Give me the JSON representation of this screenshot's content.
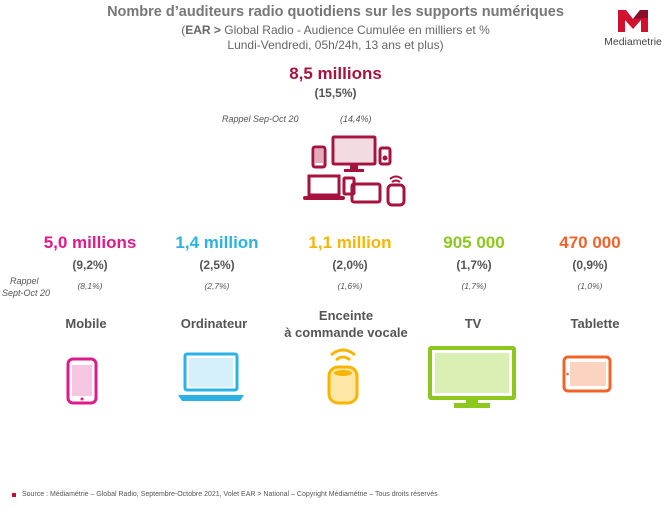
{
  "header": {
    "title": "Nombre d’auditeurs radio quotidiens sur les supports numériques",
    "subtitle_bold": "EAR >",
    "subtitle_rest": " Global Radio - Audience Cumulée en milliers et %",
    "subtitle_line2": "Lundi-Vendredi, 05h/24h, 13 ans et plus)",
    "subtitle_open": "("
  },
  "logo": {
    "letter": "M",
    "brand": "Mediametrie",
    "color": "#d5102f"
  },
  "total": {
    "value": "8,5 millions",
    "pct": "(15,5%)",
    "rappel_label": "Rappel Sep-Oct 20",
    "rappel_pct": "(14,4%)",
    "color": "#a8123e"
  },
  "rappel_left": {
    "line1": "Rappel",
    "line2": "Sept-Oct 20"
  },
  "supports": [
    {
      "value": "5,0 millions",
      "pct": "(9,2%)",
      "rappel": "(8,1%)",
      "label": "Mobile",
      "color": "#e01a8a",
      "icon": "mobile-icon"
    },
    {
      "value": "1,4 million",
      "pct": "(2,5%)",
      "rappel": "(2,7%)",
      "label": "Ordinateur",
      "color": "#2ab2e4",
      "icon": "laptop-icon"
    },
    {
      "value": "1,1 million",
      "pct": "(2,0%)",
      "rappel": "(1,6%)",
      "label_line1": "Enceinte",
      "label_line2": "à commande vocale",
      "color": "#f7b500",
      "icon": "smart-speaker-icon"
    },
    {
      "value": "905 000",
      "pct": "(1,7%)",
      "rappel": "(1,7%)",
      "label": "TV",
      "color": "#8cc81e",
      "icon": "tv-icon"
    },
    {
      "value": "470 000",
      "pct": "(0,9%)",
      "rappel": "(1,0%)",
      "label": "Tablette",
      "color": "#f0642a",
      "icon": "tablet-icon"
    }
  ],
  "footer": {
    "source": "Source : Médiamétrie –  Global Radio, Septembre-Octobre 2021, Volet EAR > National – Copyright Médiamétrie – Tous droits réservés"
  }
}
